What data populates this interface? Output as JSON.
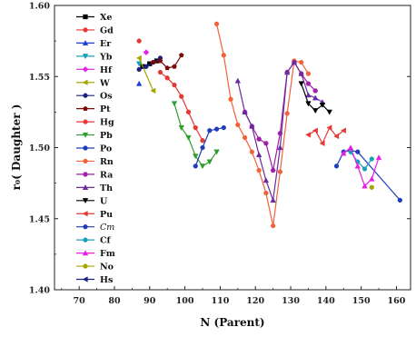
{
  "chart_data": {
    "type": "line",
    "title": "",
    "xlabel": "N (Parent)",
    "ylabel": "r₀( Daughter )",
    "xlim": [
      63,
      164
    ],
    "ylim": [
      1.4,
      1.6
    ],
    "xticks": [
      "70",
      "80",
      "90",
      "100",
      "110",
      "120",
      "130",
      "140",
      "150",
      "160"
    ],
    "yticks": [
      "1.40",
      "1.45",
      "1.50",
      "1.55",
      "1.60"
    ],
    "legend_position": "top-left",
    "series": [
      {
        "name": "Xe",
        "color": "#000000",
        "points": [
          [
            88,
            1.557
          ],
          [
            90,
            1.559
          ],
          [
            92,
            1.561
          ]
        ]
      },
      {
        "name": "Gd",
        "color": "#e53935",
        "points": [
          [
            87,
            1.575
          ]
        ]
      },
      {
        "name": "Er",
        "color": "#1e3fd8",
        "points": [
          [
            87,
            1.545
          ]
        ]
      },
      {
        "name": "Yb",
        "color": "#18a0b8",
        "points": [
          [
            87,
            1.559
          ]
        ]
      },
      {
        "name": "Hf",
        "color": "#e81ee8",
        "points": [
          [
            89,
            1.567
          ]
        ]
      },
      {
        "name": "W",
        "color": "#a6a600",
        "points": [
          [
            87,
            1.563
          ],
          [
            91,
            1.54
          ]
        ]
      },
      {
        "name": "Os",
        "color": "#1a237e",
        "points": [
          [
            87,
            1.555
          ],
          [
            89,
            1.557
          ],
          [
            91,
            1.56
          ],
          [
            93,
            1.563
          ]
        ]
      },
      {
        "name": "Pt",
        "color": "#7b0a0a",
        "points": [
          [
            91,
            1.56
          ],
          [
            93,
            1.561
          ],
          [
            95,
            1.556
          ],
          [
            97,
            1.557
          ],
          [
            99,
            1.565
          ]
        ]
      },
      {
        "name": "Hg",
        "color": "#e53935",
        "points": [
          [
            93,
            1.553
          ],
          [
            95,
            1.549
          ],
          [
            97,
            1.544
          ],
          [
            99,
            1.536
          ],
          [
            101,
            1.525
          ],
          [
            103,
            1.514
          ],
          [
            105,
            1.505
          ]
        ]
      },
      {
        "name": "Pb",
        "color": "#2e9e2e",
        "points": [
          [
            97,
            1.531
          ],
          [
            99,
            1.514
          ],
          [
            101,
            1.507
          ],
          [
            103,
            1.494
          ],
          [
            105,
            1.487
          ],
          [
            107,
            1.49
          ],
          [
            109,
            1.497
          ]
        ]
      },
      {
        "name": "Po",
        "color": "#1f3db8",
        "points": [
          [
            103,
            1.487
          ],
          [
            105,
            1.5
          ],
          [
            107,
            1.512
          ],
          [
            109,
            1.513
          ],
          [
            111,
            1.514
          ]
        ]
      },
      {
        "name": "Rn",
        "color": "#f0623a",
        "points": [
          [
            109,
            1.587
          ],
          [
            111,
            1.565
          ],
          [
            113,
            1.534
          ],
          [
            115,
            1.516
          ],
          [
            117,
            1.507
          ],
          [
            119,
            1.497
          ],
          [
            121,
            1.484
          ],
          [
            123,
            1.468
          ],
          [
            125,
            1.445
          ],
          [
            127,
            1.483
          ],
          [
            129,
            1.524
          ],
          [
            131,
            1.561
          ],
          [
            133,
            1.56
          ],
          [
            135,
            1.552
          ]
        ]
      },
      {
        "name": "Ra",
        "color": "#a21ea6",
        "points": [
          [
            117,
            1.525
          ],
          [
            119,
            1.515
          ],
          [
            121,
            1.506
          ],
          [
            123,
            1.503
          ],
          [
            125,
            1.484
          ],
          [
            127,
            1.51
          ],
          [
            129,
            1.553
          ],
          [
            131,
            1.56
          ],
          [
            133,
            1.552
          ],
          [
            135,
            1.545
          ],
          [
            137,
            1.54
          ]
        ]
      },
      {
        "name": "Th",
        "color": "#6b2aa0",
        "points": [
          [
            115,
            1.547
          ],
          [
            117,
            1.525
          ],
          [
            119,
            1.515
          ],
          [
            121,
            1.495
          ],
          [
            123,
            1.477
          ],
          [
            125,
            1.463
          ],
          [
            127,
            1.5
          ],
          [
            129,
            1.553
          ],
          [
            131,
            1.56
          ],
          [
            133,
            1.552
          ],
          [
            135,
            1.537
          ],
          [
            137,
            1.535
          ],
          [
            139,
            1.532
          ]
        ]
      },
      {
        "name": "U",
        "color": "#000000",
        "points": [
          [
            133,
            1.545
          ],
          [
            135,
            1.531
          ],
          [
            137,
            1.526
          ],
          [
            139,
            1.53
          ],
          [
            141,
            1.525
          ]
        ]
      },
      {
        "name": "Pu",
        "color": "#e53935",
        "points": [
          [
            135,
            1.509
          ],
          [
            137,
            1.512
          ],
          [
            139,
            1.503
          ],
          [
            141,
            1.514
          ],
          [
            143,
            1.508
          ],
          [
            145,
            1.512
          ]
        ]
      },
      {
        "name": "Cm",
        "italic": true,
        "color": "#1f3db8",
        "points": [
          [
            143,
            1.487
          ],
          [
            145,
            1.497
          ],
          [
            147,
            1.498
          ],
          [
            149,
            1.497
          ],
          [
            161,
            1.463
          ]
        ]
      },
      {
        "name": "Cf",
        "color": "#18a0b8",
        "points": [
          [
            147,
            1.497
          ],
          [
            149,
            1.49
          ],
          [
            151,
            1.485
          ],
          [
            153,
            1.492
          ]
        ]
      },
      {
        "name": "Fm",
        "color": "#e81ee8",
        "points": [
          [
            145,
            1.496
          ],
          [
            147,
            1.5
          ],
          [
            149,
            1.487
          ],
          [
            151,
            1.473
          ],
          [
            153,
            1.478
          ],
          [
            155,
            1.493
          ]
        ]
      },
      {
        "name": "No",
        "color": "#a6a600",
        "points": [
          [
            153,
            1.472
          ]
        ]
      },
      {
        "name": "Hs",
        "color": "#1a237e",
        "points": []
      }
    ]
  }
}
